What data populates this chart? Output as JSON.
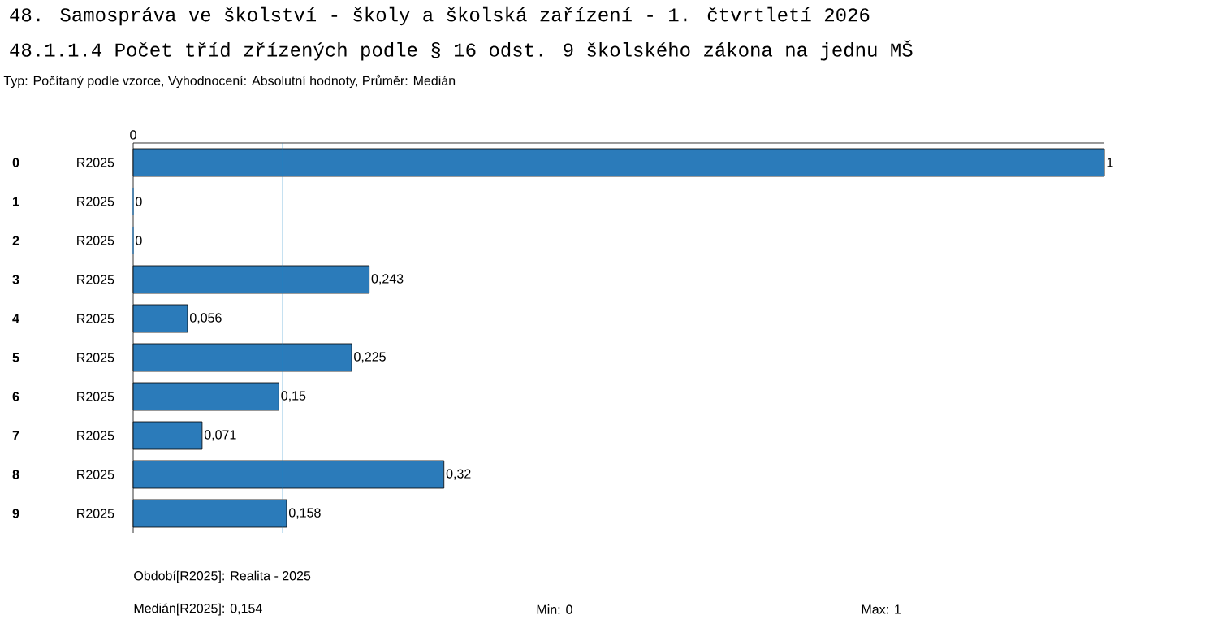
{
  "chart_data": {
    "type": "bar",
    "orientation": "horizontal",
    "title": "48. Samospráva ve školství - školy a školská zařízení - 1. čtvrtletí 2026",
    "subtitle": "48.1.1.4 Počet tříd zřízených podle § 16 odst. 9 školského zákona na jednu MŠ",
    "categories": [
      "0",
      "1",
      "2",
      "3",
      "4",
      "5",
      "6",
      "7",
      "8",
      "9"
    ],
    "values": [
      1,
      0,
      0,
      0.243,
      0.056,
      0.225,
      0.15,
      0.071,
      0.32,
      0.158
    ],
    "value_labels": [
      "1",
      "0",
      "0",
      "0,243",
      "0,056",
      "0,225",
      "0,15",
      "0,071",
      "0,32",
      "0,158"
    ],
    "color": "#2b7bba",
    "ref_lines": [
      {
        "axis": "x",
        "value": 0.154,
        "color": "#1a85c8"
      }
    ],
    "annotations": [
      "Typ: Počítaný podle vzorce, Vyhodnocení: Absolutní hodnoty, Průměr: Medián",
      "Období[R2025]: Realita - 2025",
      "Medián[R2025]: 0,154",
      "Min: 0",
      "Max: 1",
      "0",
      "R2025",
      "R2025",
      "R2025",
      "R2025",
      "R2025",
      "R2025",
      "R2025",
      "R2025",
      "R2025",
      "R2025"
    ]
  }
}
